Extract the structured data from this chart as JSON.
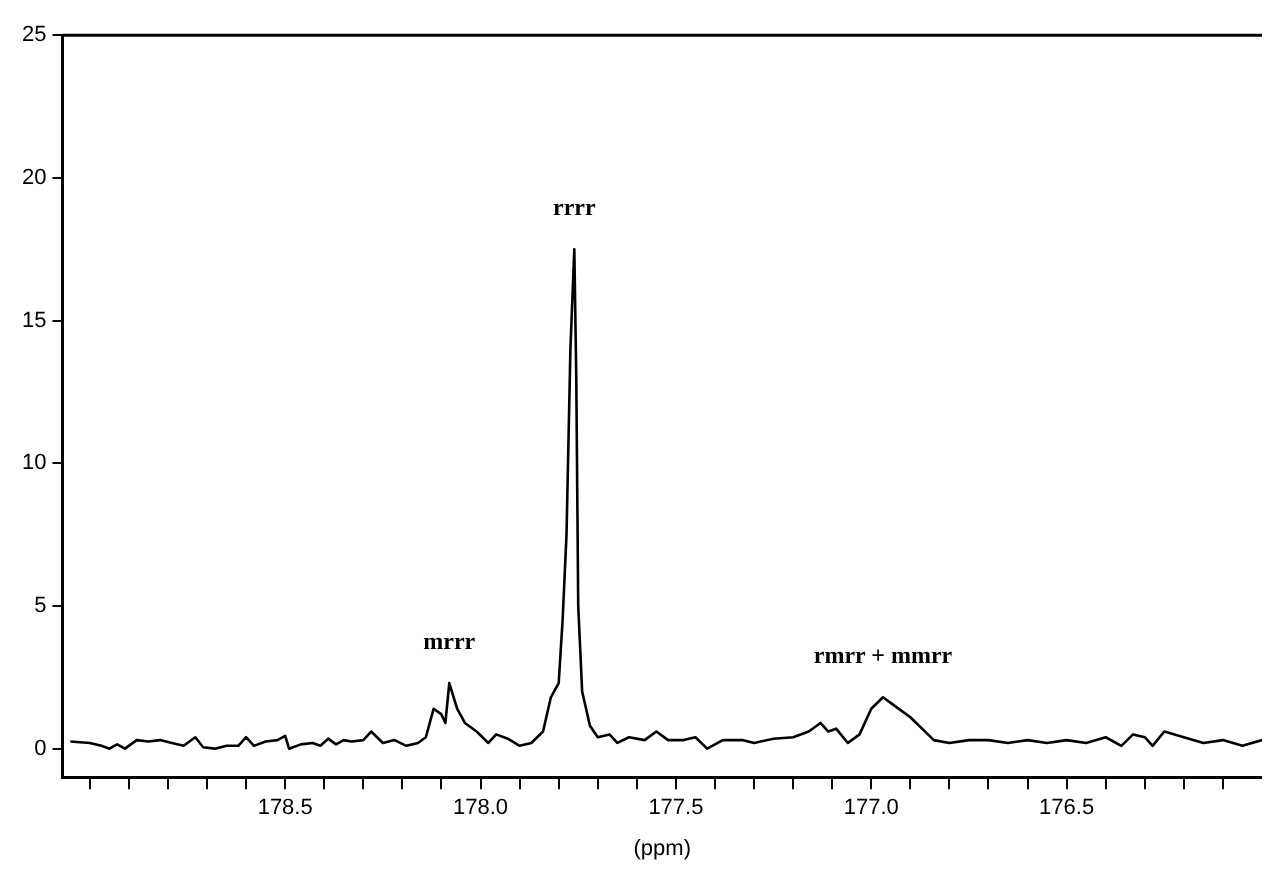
{
  "chart_data": {
    "type": "line",
    "xlabel": "(ppm)",
    "xlim": [
      179.07,
      176.0
    ],
    "xticks": [
      {
        "value": 179.0,
        "label": null
      },
      {
        "value": 178.9,
        "label": null
      },
      {
        "value": 178.8,
        "label": null
      },
      {
        "value": 178.7,
        "label": null
      },
      {
        "value": 178.6,
        "label": null
      },
      {
        "value": 178.5,
        "label": "178.5"
      },
      {
        "value": 178.4,
        "label": null
      },
      {
        "value": 178.3,
        "label": null
      },
      {
        "value": 178.2,
        "label": null
      },
      {
        "value": 178.1,
        "label": null
      },
      {
        "value": 178.0,
        "label": "178.0"
      },
      {
        "value": 177.9,
        "label": null
      },
      {
        "value": 177.8,
        "label": null
      },
      {
        "value": 177.7,
        "label": null
      },
      {
        "value": 177.6,
        "label": null
      },
      {
        "value": 177.5,
        "label": "177.5"
      },
      {
        "value": 177.4,
        "label": null
      },
      {
        "value": 177.3,
        "label": null
      },
      {
        "value": 177.2,
        "label": null
      },
      {
        "value": 177.1,
        "label": null
      },
      {
        "value": 177.0,
        "label": "177.0"
      },
      {
        "value": 176.9,
        "label": null
      },
      {
        "value": 176.8,
        "label": null
      },
      {
        "value": 176.7,
        "label": null
      },
      {
        "value": 176.6,
        "label": null
      },
      {
        "value": 176.5,
        "label": "176.5"
      },
      {
        "value": 176.4,
        "label": null
      },
      {
        "value": 176.3,
        "label": null
      },
      {
        "value": 176.2,
        "label": null
      },
      {
        "value": 176.1,
        "label": null
      }
    ],
    "ylim": [
      -1,
      25
    ],
    "yticks": [
      0,
      5,
      10,
      15,
      20,
      25
    ],
    "grid": false,
    "legend": false,
    "marker": "none",
    "line_style": "solid",
    "annotations": [
      {
        "text": "mrrr",
        "x": 178.08,
        "y": 2.3
      },
      {
        "text": "rrrr",
        "x": 177.76,
        "y": 17.5
      },
      {
        "text": "rmrr + mmrr",
        "x": 176.97,
        "y": 1.8
      }
    ],
    "series": [
      {
        "color": "#000000",
        "x": [
          179.05,
          179.0,
          178.97,
          178.95,
          178.93,
          178.91,
          178.88,
          178.85,
          178.82,
          178.79,
          178.76,
          178.73,
          178.71,
          178.68,
          178.65,
          178.62,
          178.6,
          178.58,
          178.55,
          178.52,
          178.5,
          178.49,
          178.46,
          178.43,
          178.41,
          178.39,
          178.37,
          178.35,
          178.33,
          178.3,
          178.28,
          178.25,
          178.22,
          178.19,
          178.16,
          178.14,
          178.12,
          178.1,
          178.09,
          178.08,
          178.06,
          178.04,
          178.01,
          177.98,
          177.96,
          177.93,
          177.9,
          177.87,
          177.84,
          177.82,
          177.8,
          177.79,
          177.78,
          177.77,
          177.76,
          177.755,
          177.75,
          177.74,
          177.72,
          177.7,
          177.67,
          177.65,
          177.62,
          177.58,
          177.55,
          177.52,
          177.48,
          177.45,
          177.42,
          177.38,
          177.33,
          177.3,
          177.25,
          177.2,
          177.16,
          177.13,
          177.11,
          177.09,
          177.06,
          177.03,
          177.0,
          176.97,
          176.94,
          176.9,
          176.87,
          176.84,
          176.8,
          176.75,
          176.7,
          176.65,
          176.6,
          176.55,
          176.5,
          176.45,
          176.4,
          176.36,
          176.33,
          176.3,
          176.28,
          176.25,
          176.2,
          176.15,
          176.1,
          176.05,
          176.0
        ],
        "values": [
          0.25,
          0.2,
          0.1,
          0.0,
          0.15,
          0.0,
          0.3,
          0.25,
          0.3,
          0.2,
          0.1,
          0.4,
          0.05,
          0.0,
          0.1,
          0.1,
          0.4,
          0.1,
          0.25,
          0.3,
          0.45,
          0.0,
          0.15,
          0.2,
          0.1,
          0.35,
          0.15,
          0.3,
          0.25,
          0.3,
          0.6,
          0.2,
          0.3,
          0.1,
          0.2,
          0.4,
          1.4,
          1.2,
          0.9,
          2.3,
          1.4,
          0.9,
          0.6,
          0.2,
          0.5,
          0.35,
          0.1,
          0.2,
          0.6,
          1.8,
          2.3,
          4.5,
          7.5,
          14,
          17.5,
          13,
          5,
          2,
          0.8,
          0.4,
          0.5,
          0.2,
          0.4,
          0.3,
          0.6,
          0.3,
          0.3,
          0.4,
          0.0,
          0.3,
          0.3,
          0.2,
          0.35,
          0.4,
          0.6,
          0.9,
          0.6,
          0.7,
          0.2,
          0.5,
          1.4,
          1.8,
          1.5,
          1.1,
          0.7,
          0.3,
          0.2,
          0.3,
          0.3,
          0.2,
          0.3,
          0.2,
          0.3,
          0.2,
          0.4,
          0.1,
          0.5,
          0.4,
          0.1,
          0.6,
          0.4,
          0.2,
          0.3,
          0.1,
          0.3
        ]
      }
    ]
  }
}
